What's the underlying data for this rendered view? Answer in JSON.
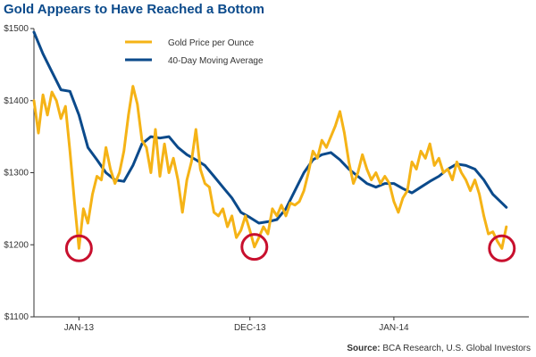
{
  "chart_data": {
    "type": "line",
    "title": "Gold Appears to Have Reached a Bottom",
    "source_label": "Source:",
    "source_text": "BCA Research, U.S. Global Investors",
    "ylim": [
      1100,
      1500
    ],
    "y_ticks": [
      "$1500",
      "$1400",
      "$1300",
      "$1200",
      "$1100"
    ],
    "y_tick_values": [
      1500,
      1400,
      1300,
      1200,
      1100
    ],
    "x_ticks": [
      "JAN-13",
      "DEC-13",
      "JAN-14"
    ],
    "x_tick_positions": [
      10,
      48,
      80
    ],
    "x_range": [
      0,
      110
    ],
    "colors": {
      "gold": "#f5b316",
      "ma": "#0b4a8b",
      "circle": "#c8102e",
      "axis": "#333333"
    },
    "series": [
      {
        "name": "Gold Price per Ounce",
        "points": [
          [
            0,
            1400
          ],
          [
            1,
            1355
          ],
          [
            2,
            1408
          ],
          [
            3,
            1380
          ],
          [
            4,
            1412
          ],
          [
            5,
            1400
          ],
          [
            6,
            1375
          ],
          [
            7,
            1392
          ],
          [
            8,
            1330
          ],
          [
            9,
            1260
          ],
          [
            10,
            1195
          ],
          [
            11,
            1250
          ],
          [
            12,
            1230
          ],
          [
            13,
            1270
          ],
          [
            14,
            1295
          ],
          [
            15,
            1290
          ],
          [
            16,
            1335
          ],
          [
            17,
            1305
          ],
          [
            18,
            1285
          ],
          [
            19,
            1300
          ],
          [
            20,
            1330
          ],
          [
            21,
            1380
          ],
          [
            22,
            1420
          ],
          [
            23,
            1395
          ],
          [
            24,
            1345
          ],
          [
            25,
            1335
          ],
          [
            26,
            1300
          ],
          [
            27,
            1360
          ],
          [
            28,
            1295
          ],
          [
            29,
            1340
          ],
          [
            30,
            1300
          ],
          [
            31,
            1320
          ],
          [
            32,
            1290
          ],
          [
            33,
            1245
          ],
          [
            34,
            1290
          ],
          [
            35,
            1315
          ],
          [
            36,
            1360
          ],
          [
            37,
            1305
          ],
          [
            38,
            1285
          ],
          [
            39,
            1280
          ],
          [
            40,
            1245
          ],
          [
            41,
            1240
          ],
          [
            42,
            1250
          ],
          [
            43,
            1225
          ],
          [
            44,
            1240
          ],
          [
            45,
            1210
          ],
          [
            46,
            1220
          ],
          [
            47,
            1240
          ],
          [
            48,
            1220
          ],
          [
            49,
            1197
          ],
          [
            50,
            1210
          ],
          [
            51,
            1225
          ],
          [
            52,
            1215
          ],
          [
            53,
            1250
          ],
          [
            54,
            1240
          ],
          [
            55,
            1255
          ],
          [
            56,
            1240
          ],
          [
            57,
            1258
          ],
          [
            58,
            1255
          ],
          [
            59,
            1260
          ],
          [
            60,
            1275
          ],
          [
            61,
            1300
          ],
          [
            62,
            1330
          ],
          [
            63,
            1320
          ],
          [
            64,
            1345
          ],
          [
            65,
            1335
          ],
          [
            66,
            1350
          ],
          [
            67,
            1365
          ],
          [
            68,
            1385
          ],
          [
            69,
            1355
          ],
          [
            70,
            1315
          ],
          [
            71,
            1285
          ],
          [
            72,
            1300
          ],
          [
            73,
            1325
          ],
          [
            74,
            1305
          ],
          [
            75,
            1290
          ],
          [
            76,
            1300
          ],
          [
            77,
            1285
          ],
          [
            78,
            1295
          ],
          [
            79,
            1285
          ],
          [
            80,
            1260
          ],
          [
            81,
            1245
          ],
          [
            82,
            1265
          ],
          [
            83,
            1275
          ],
          [
            84,
            1315
          ],
          [
            85,
            1305
          ],
          [
            86,
            1330
          ],
          [
            87,
            1320
          ],
          [
            88,
            1340
          ],
          [
            89,
            1310
          ],
          [
            90,
            1320
          ],
          [
            91,
            1300
          ],
          [
            92,
            1305
          ],
          [
            93,
            1290
          ],
          [
            94,
            1315
          ],
          [
            95,
            1300
          ],
          [
            96,
            1290
          ],
          [
            97,
            1275
          ],
          [
            98,
            1290
          ],
          [
            99,
            1270
          ],
          [
            100,
            1240
          ],
          [
            101,
            1215
          ],
          [
            102,
            1218
          ],
          [
            103,
            1205
          ],
          [
            104,
            1195
          ],
          [
            105,
            1225
          ]
        ]
      },
      {
        "name": "40-Day Moving Average",
        "points": [
          [
            0,
            1495
          ],
          [
            2,
            1465
          ],
          [
            4,
            1440
          ],
          [
            6,
            1415
          ],
          [
            8,
            1413
          ],
          [
            10,
            1380
          ],
          [
            12,
            1335
          ],
          [
            14,
            1318
          ],
          [
            16,
            1300
          ],
          [
            18,
            1290
          ],
          [
            20,
            1288
          ],
          [
            22,
            1310
          ],
          [
            24,
            1340
          ],
          [
            26,
            1350
          ],
          [
            28,
            1348
          ],
          [
            30,
            1350
          ],
          [
            32,
            1335
          ],
          [
            34,
            1325
          ],
          [
            36,
            1318
          ],
          [
            38,
            1310
          ],
          [
            40,
            1295
          ],
          [
            42,
            1280
          ],
          [
            44,
            1265
          ],
          [
            46,
            1245
          ],
          [
            48,
            1238
          ],
          [
            50,
            1230
          ],
          [
            52,
            1232
          ],
          [
            54,
            1235
          ],
          [
            56,
            1250
          ],
          [
            58,
            1275
          ],
          [
            60,
            1300
          ],
          [
            62,
            1318
          ],
          [
            64,
            1325
          ],
          [
            66,
            1328
          ],
          [
            68,
            1318
          ],
          [
            70,
            1305
          ],
          [
            72,
            1295
          ],
          [
            74,
            1285
          ],
          [
            76,
            1280
          ],
          [
            78,
            1285
          ],
          [
            80,
            1285
          ],
          [
            82,
            1278
          ],
          [
            84,
            1272
          ],
          [
            86,
            1280
          ],
          [
            88,
            1288
          ],
          [
            90,
            1295
          ],
          [
            92,
            1305
          ],
          [
            94,
            1312
          ],
          [
            96,
            1310
          ],
          [
            98,
            1305
          ],
          [
            100,
            1290
          ],
          [
            102,
            1270
          ],
          [
            104,
            1258
          ],
          [
            105,
            1252
          ]
        ]
      }
    ],
    "annotations": [
      {
        "type": "circle",
        "x": 10,
        "y": 1195
      },
      {
        "type": "circle",
        "x": 49,
        "y": 1197
      },
      {
        "type": "circle",
        "x": 104,
        "y": 1195
      }
    ],
    "legend_position": "top-center"
  }
}
